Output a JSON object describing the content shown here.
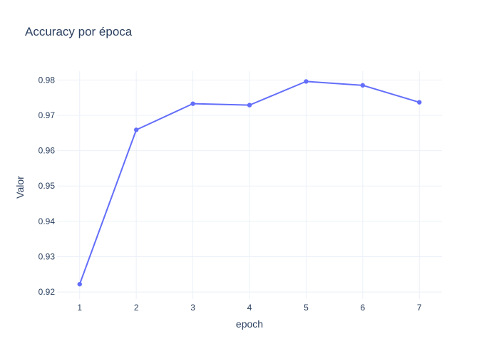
{
  "chart_data": {
    "type": "line",
    "title": "Accuracy por época",
    "xlabel": "epoch",
    "ylabel": "Valor",
    "x": [
      1,
      2,
      3,
      4,
      5,
      6,
      7
    ],
    "series": [
      {
        "values": [
          0.9222,
          0.9659,
          0.9733,
          0.9729,
          0.9796,
          0.9785,
          0.9737
        ]
      }
    ],
    "xlim": [
      0.6,
      7.4
    ],
    "ylim": [
      0.918,
      0.9825
    ],
    "xticks": [
      1,
      2,
      3,
      4,
      5,
      6,
      7
    ],
    "yticks": [
      0.92,
      0.93,
      0.94,
      0.95,
      0.96,
      0.97,
      0.98
    ],
    "ytick_labels": [
      "0.92",
      "0.93",
      "0.94",
      "0.95",
      "0.96",
      "0.97",
      "0.98"
    ],
    "grid": true,
    "colors": {
      "line": "#636efa",
      "grid": "#ebf0f8",
      "text": "#2a3f5f"
    }
  }
}
